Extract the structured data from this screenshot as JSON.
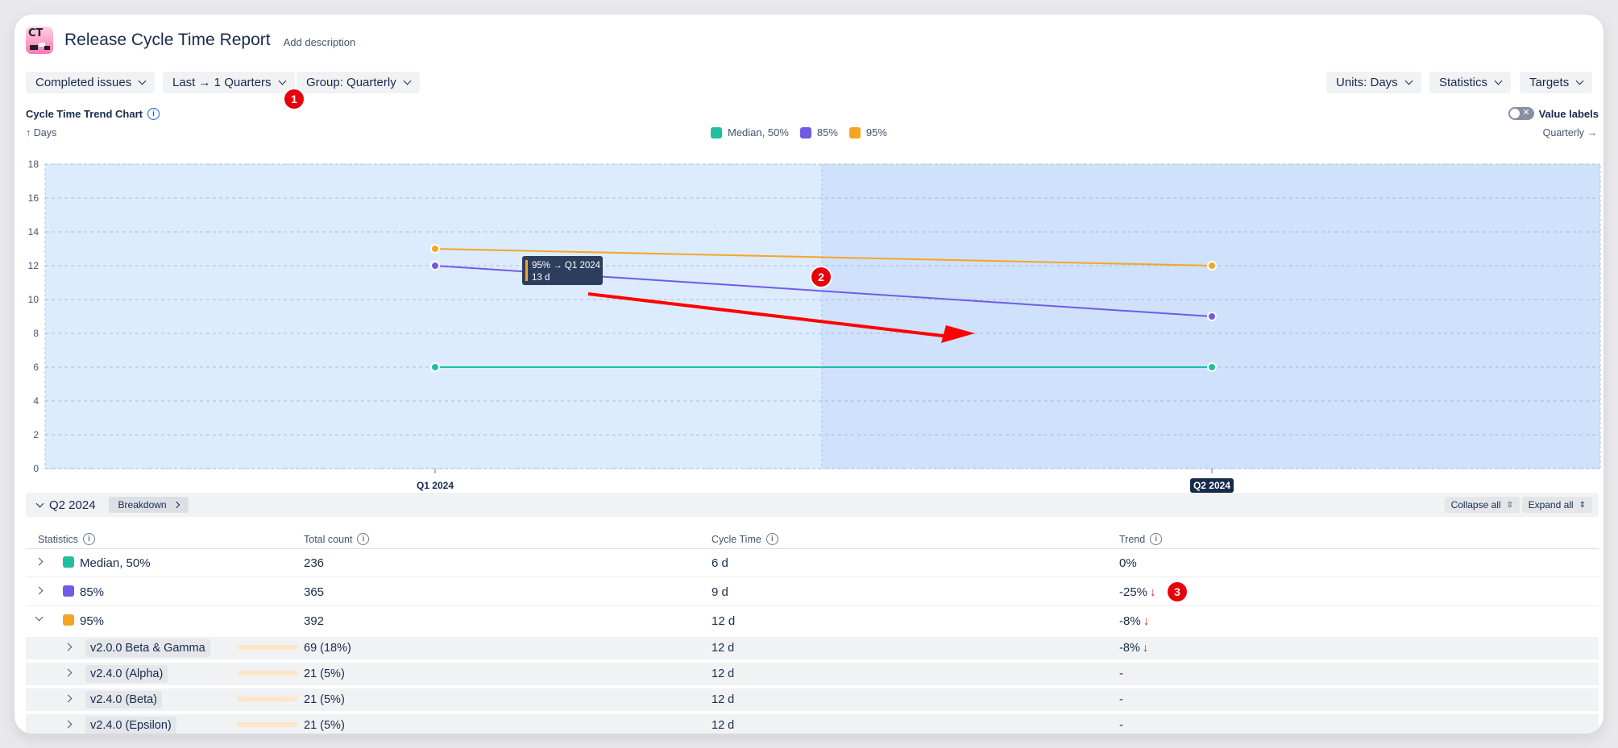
{
  "header": {
    "app_initials": "CT",
    "title": "Release Cycle Time Report",
    "add_description": "Add description"
  },
  "filters": {
    "left": [
      "Completed issues",
      "Last → 1 Quarters",
      "Group: Quarterly"
    ],
    "right": [
      "Units: Days",
      "Statistics",
      "Targets"
    ]
  },
  "annotations": [
    "1",
    "2",
    "3"
  ],
  "chart_header": {
    "title": "Cycle Time Trend Chart",
    "value_labels": "Value labels",
    "y_axis_label": "↑ Days",
    "x_axis_label": "Quarterly →"
  },
  "tooltip": {
    "title": "95% → Q1 2024",
    "value": "13 d"
  },
  "colors": {
    "median": "#1fbf9f",
    "p85": "#6e5ce6",
    "p95": "#f5a524",
    "accent": "#0c66e4",
    "badge": "#e8000b"
  },
  "chart_data": {
    "type": "line",
    "categories": [
      "Q1 2024",
      "Q2 2024"
    ],
    "highlighted_category": "Q2 2024",
    "ylabel": "Days",
    "xlabel": "Quarterly",
    "ylim": [
      0,
      18
    ],
    "yticks": [
      "0",
      "2",
      "4",
      "6",
      "8",
      "10",
      "12",
      "14",
      "16",
      "18"
    ],
    "grid": true,
    "legend_position": "top-center",
    "series": [
      {
        "name": "Median, 50%",
        "values": [
          6,
          6
        ],
        "color": "#1fbf9f"
      },
      {
        "name": "85%",
        "values": [
          12,
          9
        ],
        "color": "#6e5ce6"
      },
      {
        "name": "95%",
        "values": [
          13,
          12
        ],
        "color": "#f5a524"
      }
    ]
  },
  "section": {
    "title": "Q2 2024",
    "breakdown": "Breakdown",
    "collapse_all": "Collapse all",
    "expand_all": "Expand all"
  },
  "table": {
    "headers": {
      "statistics": "Statistics",
      "total_count": "Total count",
      "cycle_time": "Cycle Time",
      "trend": "Trend"
    },
    "rows": [
      {
        "name": "Median, 50%",
        "count": "236",
        "cycle": "6 d",
        "trend": "0%",
        "down": ""
      },
      {
        "name": "85%",
        "count": "365",
        "cycle": "9 d",
        "trend": "-25%",
        "down": "↓"
      },
      {
        "name": "95%",
        "count": "392",
        "cycle": "12 d",
        "trend": "-8%",
        "down": "↓"
      }
    ],
    "subrows": [
      {
        "name": "v2.0.0 Beta & Gamma",
        "count": "69 (18%)",
        "share": 0.18,
        "cycle": "12 d",
        "trend": "-8%",
        "down": "↓"
      },
      {
        "name": "v2.4.0 (Alpha)",
        "count": "21 (5%)",
        "share": 0.05,
        "cycle": "12 d",
        "trend": "-",
        "down": ""
      },
      {
        "name": "v2.4.0 (Beta)",
        "count": "21 (5%)",
        "share": 0.05,
        "cycle": "12 d",
        "trend": "-",
        "down": ""
      },
      {
        "name": "v2.4.0 (Epsilon)",
        "count": "21 (5%)",
        "share": 0.05,
        "cycle": "12 d",
        "trend": "-",
        "down": ""
      }
    ]
  }
}
